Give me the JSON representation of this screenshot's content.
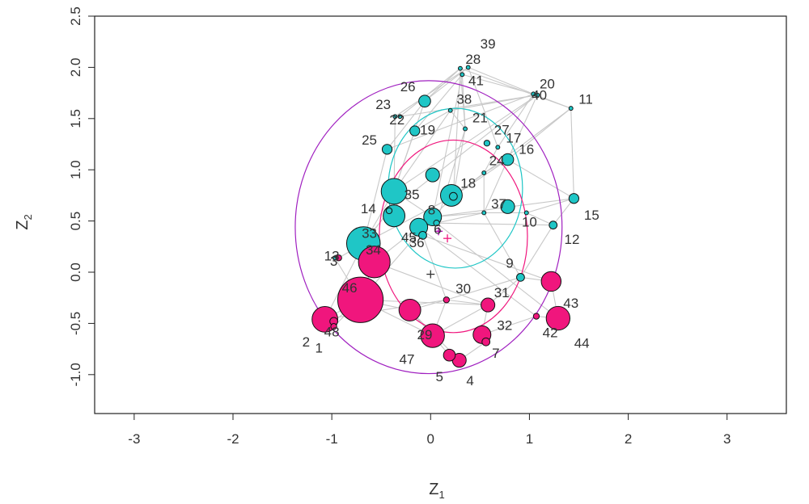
{
  "chart_data": {
    "type": "scatter",
    "title": "",
    "xlabel": "Z",
    "xlabel_sub": "1",
    "ylabel": "Z",
    "ylabel_sub": "2",
    "xlim": [
      -3.4,
      3.6
    ],
    "ylim": [
      -1.38,
      2.5
    ],
    "xticks": [
      -3,
      -2,
      -1,
      0,
      1,
      2,
      3
    ],
    "yticks": [
      -1.0,
      -0.5,
      0.0,
      0.5,
      1.0,
      1.5,
      2.0,
      2.5
    ],
    "xtick_labels": [
      "-3",
      "-2",
      "-1",
      "0",
      "1",
      "2",
      "3"
    ],
    "ytick_labels": [
      "-1.0",
      "-0.5",
      "0.0",
      "0.5",
      "1.0",
      "1.5",
      "2.0",
      "2.5"
    ],
    "grid": false,
    "colors": {
      "cyan": "#1fc6c6",
      "magenta": "#f0167d",
      "edge": "#c8c8c8",
      "circle_outer": "#a020c0",
      "circle_cyan": "#1fc6c6",
      "circle_magenta": "#f0167d",
      "center_cyan": "#b000b0",
      "center_magenta": "#f0167d"
    },
    "nodes": [
      {
        "id": "1",
        "x": -0.98,
        "y": -0.48,
        "r": 0.04,
        "group": "magenta",
        "label": "1",
        "lx": -1.13,
        "ly": -0.75
      },
      {
        "id": "2",
        "x": -1.07,
        "y": -0.46,
        "r": 0.13,
        "group": "magenta",
        "label": "2",
        "lx": -1.26,
        "ly": -0.69
      },
      {
        "id": "3",
        "x": -0.93,
        "y": 0.14,
        "r": 0.03,
        "group": "magenta",
        "label": "3",
        "lx": -0.98,
        "ly": 0.1
      },
      {
        "id": "4",
        "x": 0.29,
        "y": -0.86,
        "r": 0.07,
        "group": "magenta",
        "label": "4",
        "lx": 0.4,
        "ly": -1.07
      },
      {
        "id": "5",
        "x": 0.19,
        "y": -0.81,
        "r": 0.06,
        "group": "magenta",
        "label": "5",
        "lx": 0.09,
        "ly": -1.03
      },
      {
        "id": "6",
        "x": 0.06,
        "y": 0.48,
        "r": 0.03,
        "group": "cyan",
        "label": "6",
        "lx": 0.07,
        "ly": 0.41
      },
      {
        "id": "7",
        "x": 0.56,
        "y": -0.68,
        "r": 0.04,
        "group": "magenta",
        "label": "7",
        "lx": 0.66,
        "ly": -0.8
      },
      {
        "id": "8",
        "x": 0.02,
        "y": 0.54,
        "r": 0.09,
        "group": "cyan",
        "label": "8",
        "lx": 0.01,
        "ly": 0.6
      },
      {
        "id": "9",
        "x": 0.91,
        "y": -0.05,
        "r": 0.04,
        "group": "cyan",
        "label": "9",
        "lx": 0.8,
        "ly": 0.08
      },
      {
        "id": "10",
        "x": 0.97,
        "y": 0.58,
        "r": 0.02,
        "group": "cyan",
        "label": "10",
        "lx": 1.0,
        "ly": 0.48
      },
      {
        "id": "11",
        "x": 1.42,
        "y": 1.6,
        "r": 0.02,
        "group": "cyan",
        "label": "11",
        "lx": 1.57,
        "ly": 1.68
      },
      {
        "id": "12",
        "x": 1.24,
        "y": 0.46,
        "r": 0.04,
        "group": "cyan",
        "label": "12",
        "lx": 1.43,
        "ly": 0.31
      },
      {
        "id": "13",
        "x": -0.97,
        "y": 0.14,
        "r": 0.02,
        "group": "cyan",
        "label": "13",
        "lx": -1.0,
        "ly": 0.15
      },
      {
        "id": "14",
        "x": -0.42,
        "y": 0.6,
        "r": 0.03,
        "group": "cyan",
        "label": "14",
        "lx": -0.63,
        "ly": 0.61
      },
      {
        "id": "15",
        "x": 1.45,
        "y": 0.72,
        "r": 0.05,
        "group": "cyan",
        "label": "15",
        "lx": 1.63,
        "ly": 0.55
      },
      {
        "id": "16",
        "x": 0.78,
        "y": 1.1,
        "r": 0.06,
        "group": "cyan",
        "label": "16",
        "lx": 0.97,
        "ly": 1.19
      },
      {
        "id": "17",
        "x": 0.68,
        "y": 1.22,
        "r": 0.02,
        "group": "cyan",
        "label": "17",
        "lx": 0.84,
        "ly": 1.3
      },
      {
        "id": "18",
        "x": 0.23,
        "y": 0.74,
        "r": 0.04,
        "group": "cyan",
        "label": "18",
        "lx": 0.38,
        "ly": 0.86
      },
      {
        "id": "19",
        "x": -0.16,
        "y": 1.38,
        "r": 0.05,
        "group": "cyan",
        "label": "19",
        "lx": -0.03,
        "ly": 1.38
      },
      {
        "id": "20",
        "x": 1.04,
        "y": 1.74,
        "r": 0.02,
        "group": "cyan",
        "label": "20",
        "lx": 1.18,
        "ly": 1.83
      },
      {
        "id": "21",
        "x": 0.35,
        "y": 1.4,
        "r": 0.02,
        "group": "cyan",
        "label": "21",
        "lx": 0.5,
        "ly": 1.5
      },
      {
        "id": "22",
        "x": -0.31,
        "y": 1.52,
        "r": 0.02,
        "group": "cyan",
        "label": "22",
        "lx": -0.34,
        "ly": 1.48
      },
      {
        "id": "23",
        "x": -0.36,
        "y": 1.52,
        "r": 0.02,
        "group": "cyan",
        "label": "23",
        "lx": -0.48,
        "ly": 1.63
      },
      {
        "id": "24",
        "x": 0.54,
        "y": 0.97,
        "r": 0.02,
        "group": "cyan",
        "label": "24",
        "lx": 0.67,
        "ly": 1.08
      },
      {
        "id": "25",
        "x": -0.44,
        "y": 1.2,
        "r": 0.05,
        "group": "cyan",
        "label": "25",
        "lx": -0.62,
        "ly": 1.28
      },
      {
        "id": "26",
        "x": -0.06,
        "y": 1.67,
        "r": 0.06,
        "group": "cyan",
        "label": "26",
        "lx": -0.23,
        "ly": 1.8
      },
      {
        "id": "27",
        "x": 0.57,
        "y": 1.26,
        "r": 0.03,
        "group": "cyan",
        "label": "27",
        "lx": 0.72,
        "ly": 1.38
      },
      {
        "id": "28",
        "x": 0.3,
        "y": 1.99,
        "r": 0.02,
        "group": "cyan",
        "label": "28",
        "lx": 0.43,
        "ly": 2.07
      },
      {
        "id": "29",
        "x": 0.02,
        "y": -0.62,
        "r": 0.12,
        "group": "magenta",
        "label": "29",
        "lx": -0.06,
        "ly": -0.62
      },
      {
        "id": "30",
        "x": 0.16,
        "y": -0.27,
        "r": 0.03,
        "group": "magenta",
        "label": "30",
        "lx": 0.33,
        "ly": -0.17
      },
      {
        "id": "31",
        "x": 0.58,
        "y": -0.32,
        "r": 0.07,
        "group": "magenta",
        "label": "31",
        "lx": 0.72,
        "ly": -0.21
      },
      {
        "id": "32",
        "x": 0.52,
        "y": -0.61,
        "r": 0.09,
        "group": "magenta",
        "label": "32",
        "lx": 0.75,
        "ly": -0.53
      },
      {
        "id": "33",
        "x": -0.68,
        "y": 0.28,
        "r": 0.17,
        "group": "cyan",
        "label": "33",
        "lx": -0.62,
        "ly": 0.37
      },
      {
        "id": "34",
        "x": -0.57,
        "y": 0.1,
        "r": 0.16,
        "group": "magenta",
        "label": "34",
        "lx": -0.58,
        "ly": 0.21
      },
      {
        "id": "35",
        "x": -0.37,
        "y": 0.79,
        "r": 0.13,
        "group": "cyan",
        "label": "35",
        "lx": -0.19,
        "ly": 0.75
      },
      {
        "id": "36",
        "x": -0.08,
        "y": 0.36,
        "r": 0.04,
        "group": "cyan",
        "label": "36",
        "lx": -0.14,
        "ly": 0.28
      },
      {
        "id": "37",
        "x": 0.54,
        "y": 0.58,
        "r": 0.02,
        "group": "cyan",
        "label": "37",
        "lx": 0.69,
        "ly": 0.66
      },
      {
        "id": "38",
        "x": 0.2,
        "y": 1.58,
        "r": 0.02,
        "group": "cyan",
        "label": "38",
        "lx": 0.34,
        "ly": 1.68
      },
      {
        "id": "39",
        "x": 0.38,
        "y": 2.0,
        "r": 0.02,
        "group": "cyan",
        "label": "39",
        "lx": 0.58,
        "ly": 2.22
      },
      {
        "id": "40",
        "x": 1.08,
        "y": 1.73,
        "r": 0.02,
        "group": "cyan",
        "label": "40",
        "lx": 1.1,
        "ly": 1.72
      },
      {
        "id": "41",
        "x": 0.32,
        "y": 1.93,
        "r": 0.02,
        "group": "cyan",
        "label": "41",
        "lx": 0.46,
        "ly": 1.86
      },
      {
        "id": "42",
        "x": 1.07,
        "y": -0.43,
        "r": 0.03,
        "group": "magenta",
        "label": "42",
        "lx": 1.21,
        "ly": -0.6
      },
      {
        "id": "43",
        "x": 1.22,
        "y": -0.09,
        "r": 0.1,
        "group": "magenta",
        "label": "43",
        "lx": 1.42,
        "ly": -0.31
      },
      {
        "id": "44",
        "x": 1.29,
        "y": -0.45,
        "r": 0.12,
        "group": "magenta",
        "label": "44",
        "lx": 1.53,
        "ly": -0.7
      },
      {
        "id": "45",
        "x": -0.12,
        "y": 0.44,
        "r": 0.09,
        "group": "cyan",
        "label": "45",
        "lx": -0.22,
        "ly": 0.33
      },
      {
        "id": "46",
        "x": -0.71,
        "y": -0.27,
        "r": 0.23,
        "group": "magenta",
        "label": "46",
        "lx": -0.82,
        "ly": -0.16
      },
      {
        "id": "47",
        "x": -0.21,
        "y": -0.37,
        "r": 0.11,
        "group": "magenta",
        "label": "47",
        "lx": -0.24,
        "ly": -0.86
      },
      {
        "id": "48",
        "x": -0.98,
        "y": -0.53,
        "r": 0.03,
        "group": "magenta",
        "label": "48",
        "lx": -1.0,
        "ly": -0.59
      },
      {
        "id": "c1",
        "x": 0.21,
        "y": 0.75,
        "r": 0.11,
        "group": "cyan",
        "label": "",
        "lx": 0,
        "ly": 0
      },
      {
        "id": "c2",
        "x": -0.37,
        "y": 0.55,
        "r": 0.11,
        "group": "cyan",
        "label": "",
        "lx": 0,
        "ly": 0
      },
      {
        "id": "c3",
        "x": 0.78,
        "y": 0.64,
        "r": 0.07,
        "group": "cyan",
        "label": "",
        "lx": 0,
        "ly": 0
      },
      {
        "id": "c4",
        "x": 0.02,
        "y": 0.95,
        "r": 0.07,
        "group": "cyan",
        "label": "",
        "lx": 0,
        "ly": 0
      }
    ],
    "edges": [
      [
        1,
        2
      ],
      [
        1,
        46
      ],
      [
        2,
        46
      ],
      [
        2,
        33
      ],
      [
        46,
        34
      ],
      [
        46,
        29
      ],
      [
        46,
        47
      ],
      [
        46,
        8
      ],
      [
        34,
        33
      ],
      [
        34,
        45
      ],
      [
        33,
        35
      ],
      [
        33,
        14
      ],
      [
        33,
        25
      ],
      [
        35,
        8
      ],
      [
        35,
        26
      ],
      [
        35,
        23
      ],
      [
        35,
        19
      ],
      [
        8,
        18
      ],
      [
        8,
        37
      ],
      [
        8,
        6
      ],
      [
        18,
        24
      ],
      [
        18,
        21
      ],
      [
        24,
        16
      ],
      [
        24,
        17
      ],
      [
        16,
        15
      ],
      [
        16,
        11
      ],
      [
        16,
        40
      ],
      [
        17,
        20
      ],
      [
        17,
        39
      ],
      [
        21,
        28
      ],
      [
        21,
        41
      ],
      [
        21,
        38
      ],
      [
        26,
        39
      ],
      [
        26,
        28
      ],
      [
        25,
        26
      ],
      [
        19,
        38
      ],
      [
        19,
        41
      ],
      [
        22,
        28
      ],
      [
        23,
        39
      ],
      [
        38,
        40
      ],
      [
        41,
        20
      ],
      [
        28,
        11
      ],
      [
        39,
        20
      ],
      [
        20,
        11
      ],
      [
        11,
        15
      ],
      [
        15,
        12
      ],
      [
        12,
        10
      ],
      [
        10,
        37
      ],
      [
        37,
        9
      ],
      [
        9,
        43
      ],
      [
        43,
        44
      ],
      [
        44,
        42
      ],
      [
        42,
        32
      ],
      [
        32,
        31
      ],
      [
        31,
        30
      ],
      [
        30,
        29
      ],
      [
        29,
        5
      ],
      [
        5,
        4
      ],
      [
        4,
        7
      ],
      [
        7,
        32
      ],
      [
        47,
        30
      ],
      [
        47,
        29
      ],
      [
        36,
        30
      ],
      [
        36,
        8
      ],
      [
        45,
        36
      ],
      [
        6,
        37
      ],
      [
        6,
        12
      ],
      [
        14,
        35
      ],
      [
        14,
        33
      ],
      [
        3,
        13
      ],
      [
        3,
        33
      ],
      [
        13,
        46
      ],
      [
        48,
        1
      ],
      [
        48,
        46
      ],
      [
        30,
        9
      ],
      [
        31,
        9
      ],
      [
        9,
        12
      ],
      [
        10,
        15
      ],
      [
        37,
        16
      ],
      [
        24,
        37
      ],
      [
        18,
        16
      ],
      [
        18,
        28
      ],
      [
        8,
        41
      ],
      [
        6,
        21
      ],
      [
        35,
        38
      ],
      [
        35,
        40
      ],
      [
        33,
        18
      ],
      [
        34,
        31
      ],
      [
        46,
        31
      ],
      [
        29,
        31
      ],
      [
        47,
        4
      ],
      [
        2,
        30
      ],
      [
        36,
        43
      ],
      [
        45,
        42
      ],
      [
        6,
        44
      ],
      [
        8,
        15
      ],
      [
        18,
        11
      ],
      [
        14,
        40
      ],
      [
        25,
        20
      ],
      [
        22,
        40
      ]
    ],
    "circles": [
      {
        "name": "outer",
        "cx": -0.02,
        "cy": 0.44,
        "rx": 1.35,
        "ry": 1.43,
        "color": "#a020c0"
      },
      {
        "name": "cyan",
        "cx": 0.25,
        "cy": 0.82,
        "rx": 0.68,
        "ry": 0.78,
        "color": "#1fc6c6"
      },
      {
        "name": "magenta",
        "cx": 0.23,
        "cy": 0.35,
        "rx": 0.75,
        "ry": 0.94,
        "color": "#f0167d"
      }
    ],
    "centers": [
      {
        "x": 0.0,
        "y": -0.02,
        "color": "#333333"
      },
      {
        "x": 0.08,
        "y": 0.4,
        "color": "#b000b0"
      },
      {
        "x": 0.17,
        "y": 0.33,
        "color": "#f0167d"
      }
    ]
  }
}
